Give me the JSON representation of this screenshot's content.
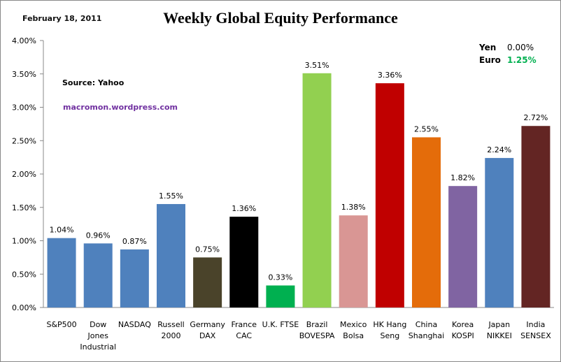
{
  "header": {
    "date": "February 18, 2011",
    "source": "Source:  Yahoo",
    "site": "macromon.wordpress.com"
  },
  "fx": {
    "yen_label": "Yen",
    "yen_value": "0.00%",
    "euro_label": "Euro",
    "euro_value": "1.25%",
    "euro_color": "#00b050"
  },
  "chart_data": {
    "type": "bar",
    "title": "Weekly Global Equity Performance",
    "xlabel": "",
    "ylabel": "",
    "ylim": [
      0,
      4
    ],
    "yticks": [
      "0.00%",
      "0.50%",
      "1.00%",
      "1.50%",
      "2.00%",
      "2.50%",
      "3.00%",
      "3.50%",
      "4.00%"
    ],
    "categories": [
      [
        "S&P500"
      ],
      [
        "Dow",
        "Jones",
        "Industrial"
      ],
      [
        "NASDAQ"
      ],
      [
        "Russell",
        "2000"
      ],
      [
        "Germany",
        "DAX"
      ],
      [
        "France",
        "CAC"
      ],
      [
        "U.K. FTSE"
      ],
      [
        "Brazil",
        "BOVESPA"
      ],
      [
        "Mexico",
        "Bolsa"
      ],
      [
        "HK Hang",
        "Seng"
      ],
      [
        "China",
        "Shanghai"
      ],
      [
        "Korea",
        "KOSPI"
      ],
      [
        "Japan",
        "NIKKEI"
      ],
      [
        "India",
        "SENSEX"
      ]
    ],
    "values": [
      1.04,
      0.96,
      0.87,
      1.55,
      0.75,
      1.36,
      0.33,
      3.51,
      1.38,
      3.36,
      2.55,
      1.82,
      2.24,
      2.72
    ],
    "data_labels": [
      "1.04%",
      "0.96%",
      "0.87%",
      "1.55%",
      "0.75%",
      "1.36%",
      "0.33%",
      "3.51%",
      "1.38%",
      "3.36%",
      "2.55%",
      "1.82%",
      "2.24%",
      "2.72%"
    ],
    "colors": [
      "#4f81bd",
      "#4f81bd",
      "#4f81bd",
      "#4f81bd",
      "#4a432a",
      "#000000",
      "#00b050",
      "#92d050",
      "#d99694",
      "#c00000",
      "#e46c0a",
      "#8064a2",
      "#4f81bd",
      "#632523"
    ],
    "grid": false,
    "legend": "none"
  }
}
